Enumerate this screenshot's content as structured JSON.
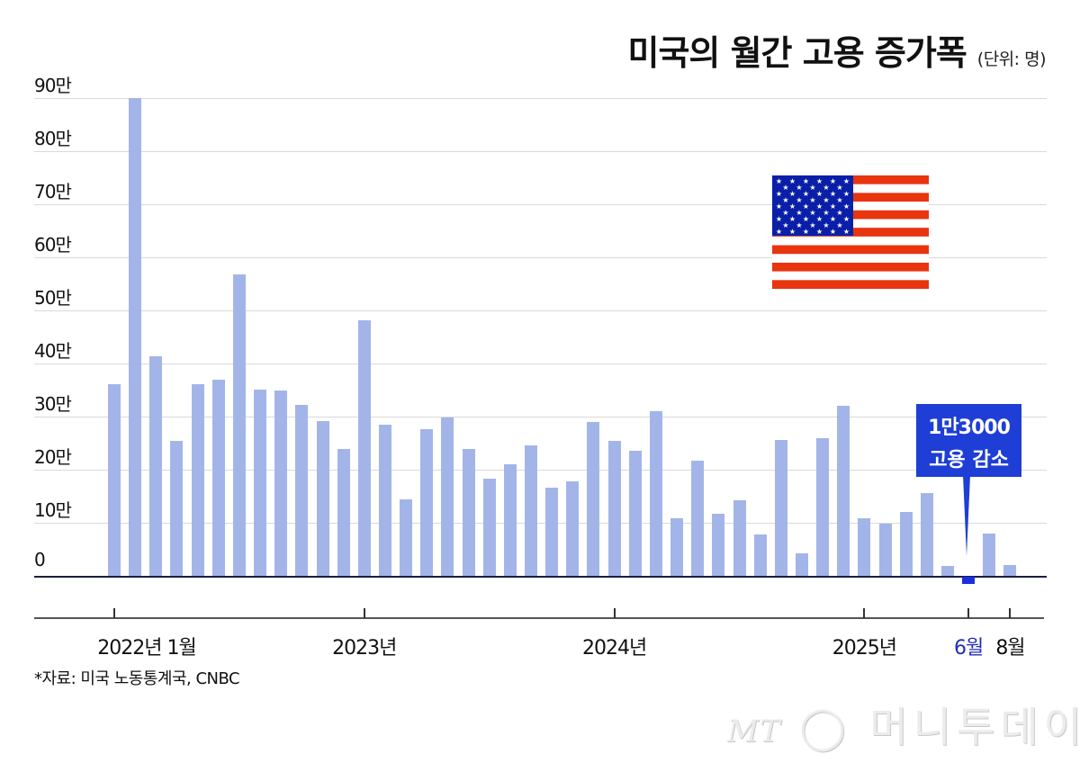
{
  "header": {
    "title": "미국의 월간 고용 증가폭",
    "unit": "(단위: 명)"
  },
  "y_axis": {
    "ticks": [
      "90만",
      "80만",
      "70만",
      "60만",
      "50만",
      "40만",
      "30만",
      "20만",
      "10만",
      "0"
    ]
  },
  "x_axis": {
    "labels": [
      {
        "text": "2022년 1월",
        "index": 0,
        "highlight": false
      },
      {
        "text": "2023년",
        "index": 12,
        "highlight": false
      },
      {
        "text": "2024년",
        "index": 24,
        "highlight": false
      },
      {
        "text": "2025년",
        "index": 36,
        "highlight": false
      },
      {
        "text": "6월",
        "index": 41,
        "highlight": true
      },
      {
        "text": "8월",
        "index": 43,
        "highlight": false
      }
    ]
  },
  "callout": {
    "line1": "1만3000",
    "line2": "고용 감소",
    "color": "#1e3ed6"
  },
  "source": "*자료: 미국 노동통계국, CNBC",
  "watermark": {
    "mt": "MT",
    "name": "머니투데이"
  },
  "flag": {
    "icon": "us-flag-icon",
    "red": "#e8340f",
    "blue": "#0a1fa8"
  },
  "colors": {
    "bar": "#a3b5e8",
    "negative_bar": "#1a2fe0",
    "highlight_label": "#1f2fb8"
  },
  "chart_data": {
    "type": "bar",
    "title": "미국의 월간 고용 증가폭",
    "subtitle": "(단위: 명)",
    "xlabel": "",
    "ylabel": "",
    "ylim": [
      -20000,
      900000
    ],
    "grid": true,
    "legend": "none",
    "tick_labels_x": [
      "2022년 1월",
      "2023년",
      "2024년",
      "2025년",
      "6월",
      "8월"
    ],
    "tick_labels_y": [
      "0",
      "10만",
      "20만",
      "30만",
      "40만",
      "50만",
      "60만",
      "70만",
      "80만",
      "90만"
    ],
    "annotations": [
      {
        "target": "2025-06",
        "text": "1만3000 고용 감소"
      }
    ],
    "categories": [
      "2022-01",
      "2022-02",
      "2022-03",
      "2022-04",
      "2022-05",
      "2022-06",
      "2022-07",
      "2022-08",
      "2022-09",
      "2022-10",
      "2022-11",
      "2022-12",
      "2023-01",
      "2023-02",
      "2023-03",
      "2023-04",
      "2023-05",
      "2023-06",
      "2023-07",
      "2023-08",
      "2023-09",
      "2023-10",
      "2023-11",
      "2023-12",
      "2024-01",
      "2024-02",
      "2024-03",
      "2024-04",
      "2024-05",
      "2024-06",
      "2024-07",
      "2024-08",
      "2024-09",
      "2024-10",
      "2024-11",
      "2024-12",
      "2025-01",
      "2025-02",
      "2025-03",
      "2025-04",
      "2025-05",
      "2025-06",
      "2025-07",
      "2025-08"
    ],
    "values": [
      361000,
      900000,
      414000,
      254000,
      361000,
      369000,
      568000,
      351000,
      349000,
      322000,
      292000,
      239000,
      481000,
      285000,
      144000,
      276000,
      298000,
      239000,
      183000,
      210000,
      246000,
      166000,
      178000,
      290000,
      254000,
      236000,
      310000,
      108000,
      217000,
      117000,
      142000,
      78000,
      256000,
      42000,
      259000,
      320000,
      108000,
      99000,
      120000,
      156000,
      19000,
      -13000,
      80000,
      20000
    ]
  }
}
